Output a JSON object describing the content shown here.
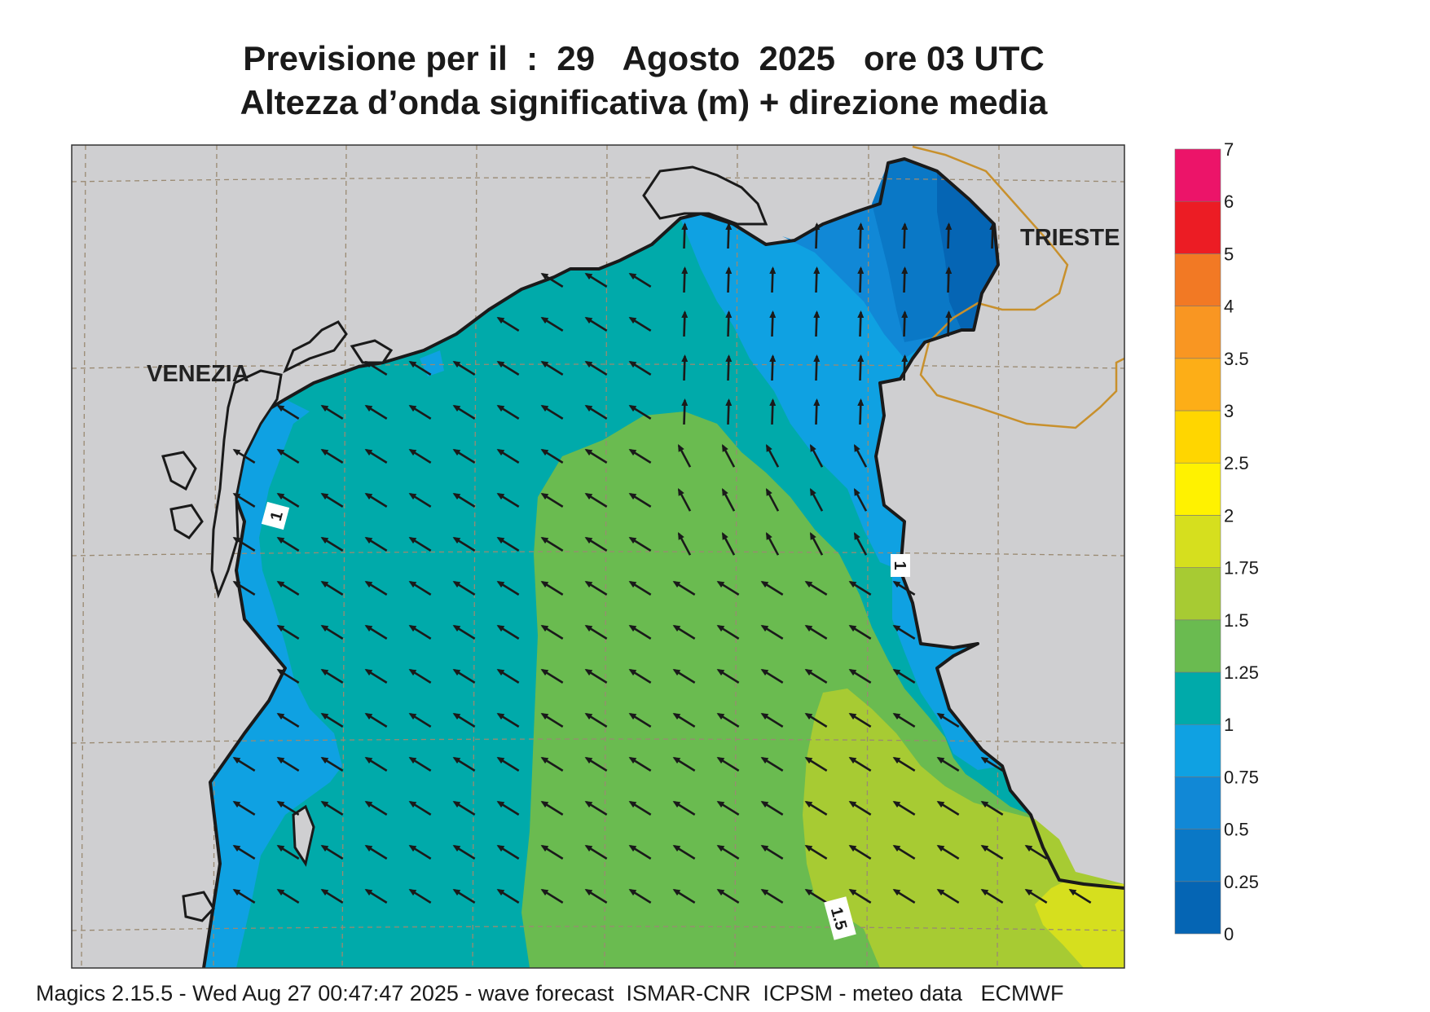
{
  "header": {
    "title_line1": "Previsione per il  :  29   Agosto  2025   ore 03 UTC",
    "title_line2": "Altezza d’onda significativa (m) + direzione media"
  },
  "places": [
    {
      "name": "VENEZIA"
    },
    {
      "name": "TRIESTE"
    }
  ],
  "contour_labels": [
    "1",
    "1",
    "1.5"
  ],
  "colors": {
    "land": "#cfcfd1",
    "grid": "#9a8a72",
    "coast": "#1a1a1a",
    "border": "#c8902c",
    "arrow": "#1a1a1a"
  },
  "legend": {
    "levels": [
      {
        "label": "0",
        "color": "#0565b4"
      },
      {
        "label": "0.25",
        "color": "#0a78c6"
      },
      {
        "label": "0.5",
        "color": "#1188d6"
      },
      {
        "label": "0.75",
        "color": "#0fa1e2"
      },
      {
        "label": "1",
        "color": "#00aaaa"
      },
      {
        "label": "1.25",
        "color": "#6abb50"
      },
      {
        "label": "1.5",
        "color": "#a7cb33"
      },
      {
        "label": "1.75",
        "color": "#d6df1e"
      },
      {
        "label": "2",
        "color": "#fff200"
      },
      {
        "label": "2.5",
        "color": "#ffd600"
      },
      {
        "label": "3",
        "color": "#fdae17"
      },
      {
        "label": "3.5",
        "color": "#f99622"
      },
      {
        "label": "4",
        "color": "#f27924"
      },
      {
        "label": "5",
        "color": "#ec1c24"
      },
      {
        "label": "6",
        "color": "#ec1469"
      },
      {
        "label": "7",
        "color": ""
      }
    ]
  },
  "footer": {
    "text": "Magics 2.15.5 - Wed Aug 27 00:47:47 2025 - wave forecast  ISMAR-CNR  ICPSM - meteo data   ECMWF"
  }
}
